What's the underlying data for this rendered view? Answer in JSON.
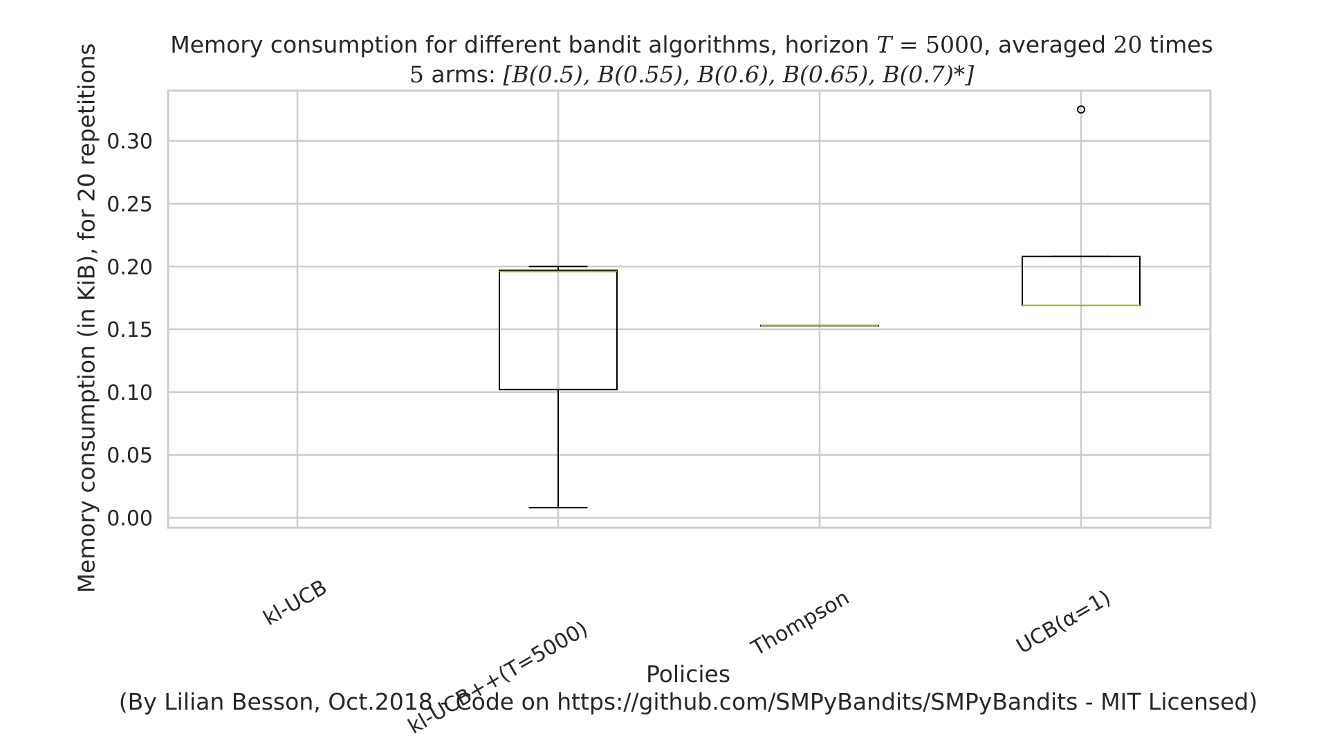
{
  "chart_data": {
    "type": "boxplot",
    "title": {
      "line1_pre": "Memory consumption for different bandit algorithms, horizon ",
      "line1_T": "T",
      "line1_eq": " = 5000",
      "line1_mid": ", averaged ",
      "line1_n": "20",
      "line1_post": " times",
      "line2_n": "5",
      "line2_pre": " arms: ",
      "line2_math": "[B(0.5), B(0.55), B(0.6), B(0.65), B(0.7)*]"
    },
    "xlabel": "Policies",
    "ylabel": "Memory consumption (in KiB), for 20 repetitions",
    "credit": "(By Lilian Besson, Oct.2018 - Code on https://github.com/SMPyBandits/SMPyBandits - MIT Licensed)",
    "ylim": [
      -0.008,
      0.34
    ],
    "yticks": [
      "0.00",
      "0.05",
      "0.10",
      "0.15",
      "0.20",
      "0.25",
      "0.30"
    ],
    "ytick_values": [
      0,
      0.05,
      0.1,
      0.15,
      0.2,
      0.25,
      0.3
    ],
    "grid": true,
    "categories": [
      "kl-UCB",
      "kl-UCB++(T=5000)",
      "Thompson",
      "UCB(α=1)"
    ],
    "boxes": [
      null,
      {
        "whislo": 0.008,
        "q1": 0.102,
        "med": 0.196,
        "q3": 0.197,
        "whishi": 0.2,
        "fliers": []
      },
      {
        "whislo": 0.153,
        "q1": 0.153,
        "med": 0.153,
        "q3": 0.153,
        "whishi": 0.153,
        "fliers": []
      },
      {
        "whislo": 0.169,
        "q1": 0.169,
        "med": 0.169,
        "q3": 0.208,
        "whishi": 0.208,
        "fliers": [
          0.325
        ]
      }
    ],
    "colors": {
      "grid": "#cccccc",
      "frame": "#cccccc",
      "box": "#000000",
      "median": "#9bb32b"
    }
  }
}
